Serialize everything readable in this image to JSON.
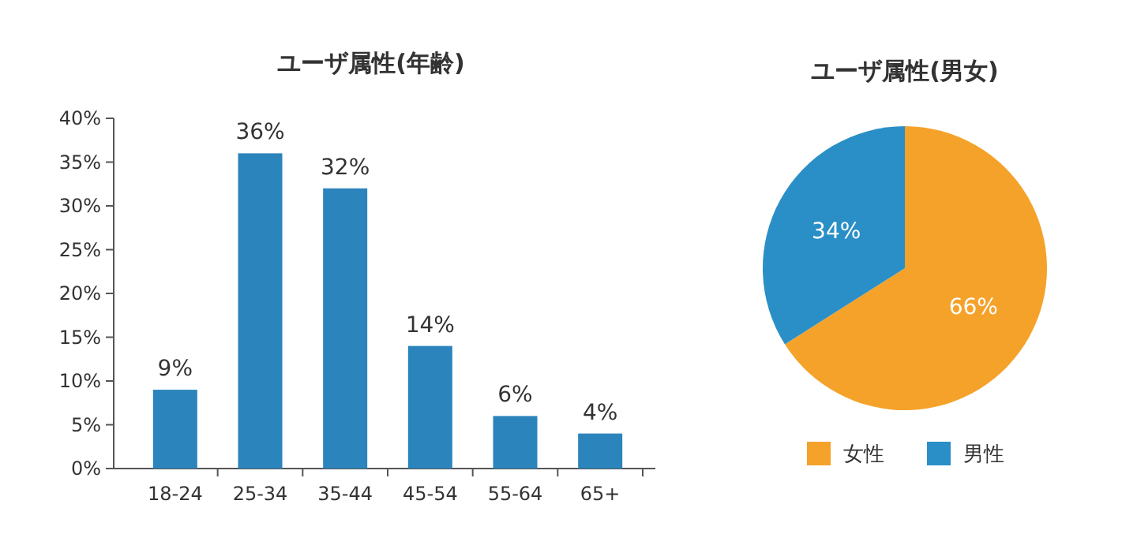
{
  "chart_data": [
    {
      "type": "bar",
      "title": "ユーザ属性(年齢)",
      "categories": [
        "18-24",
        "25-34",
        "35-44",
        "45-54",
        "55-64",
        "65+"
      ],
      "values": [
        9,
        36,
        32,
        14,
        6,
        4
      ],
      "color": "#2b84bb",
      "value_labels": [
        "9%",
        "36%",
        "32%",
        "14%",
        "6%",
        "4%"
      ],
      "ylim": [
        0,
        40
      ],
      "yticks": [
        {
          "value": 0,
          "label": "0%"
        },
        {
          "value": 5,
          "label": "5%"
        },
        {
          "value": 10,
          "label": "10%"
        },
        {
          "value": 15,
          "label": "15%"
        },
        {
          "value": 20,
          "label": "20%"
        },
        {
          "value": 25,
          "label": "25%"
        },
        {
          "value": 30,
          "label": "30%"
        },
        {
          "value": 35,
          "label": "35%"
        },
        {
          "value": 40,
          "label": "40%"
        }
      ],
      "grid": false
    },
    {
      "type": "pie",
      "title": "ユーザ属性(男女)",
      "categories": [
        "女性",
        "男性"
      ],
      "values": [
        66,
        34
      ],
      "colors": [
        "#f5a22a",
        "#2a8fc6"
      ],
      "value_labels": [
        "66%",
        "34%"
      ],
      "legend": "bottom"
    }
  ]
}
